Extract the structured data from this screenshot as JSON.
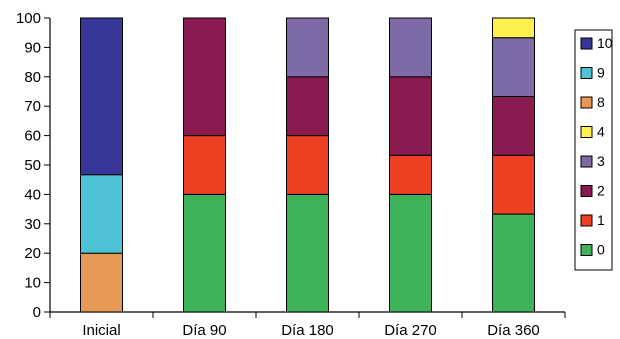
{
  "chart_data": {
    "type": "bar",
    "stacked": true,
    "categories": [
      "Inicial",
      "Día 90",
      "Día 180",
      "Día 270",
      "Día 360"
    ],
    "ylim": [
      0,
      100
    ],
    "yticks": [
      0,
      10,
      20,
      30,
      40,
      50,
      60,
      70,
      80,
      90,
      100
    ],
    "grid": false,
    "legend_position": "right",
    "series": [
      {
        "name": "0",
        "color": "#3fb35a",
        "values": [
          0,
          40,
          40,
          40,
          33.3
        ]
      },
      {
        "name": "1",
        "color": "#ee4023",
        "values": [
          0,
          20,
          20,
          13.3,
          20
        ]
      },
      {
        "name": "2",
        "color": "#8b1a50",
        "values": [
          0,
          40,
          20,
          26.7,
          20
        ]
      },
      {
        "name": "3",
        "color": "#7e6aa6",
        "values": [
          0,
          0,
          20,
          20,
          20
        ]
      },
      {
        "name": "4",
        "color": "#fdf04f",
        "values": [
          0,
          0,
          0,
          0,
          6.7
        ]
      },
      {
        "name": "8",
        "color": "#e69855",
        "values": [
          20,
          0,
          0,
          0,
          0
        ]
      },
      {
        "name": "9",
        "color": "#4fc3d6",
        "values": [
          26.7,
          0,
          0,
          0,
          0
        ]
      },
      {
        "name": "10",
        "color": "#363798",
        "values": [
          53.3,
          0,
          0,
          0,
          0
        ]
      }
    ],
    "legend_order": [
      "10",
      "9",
      "8",
      "4",
      "3",
      "2",
      "1",
      "0"
    ]
  }
}
